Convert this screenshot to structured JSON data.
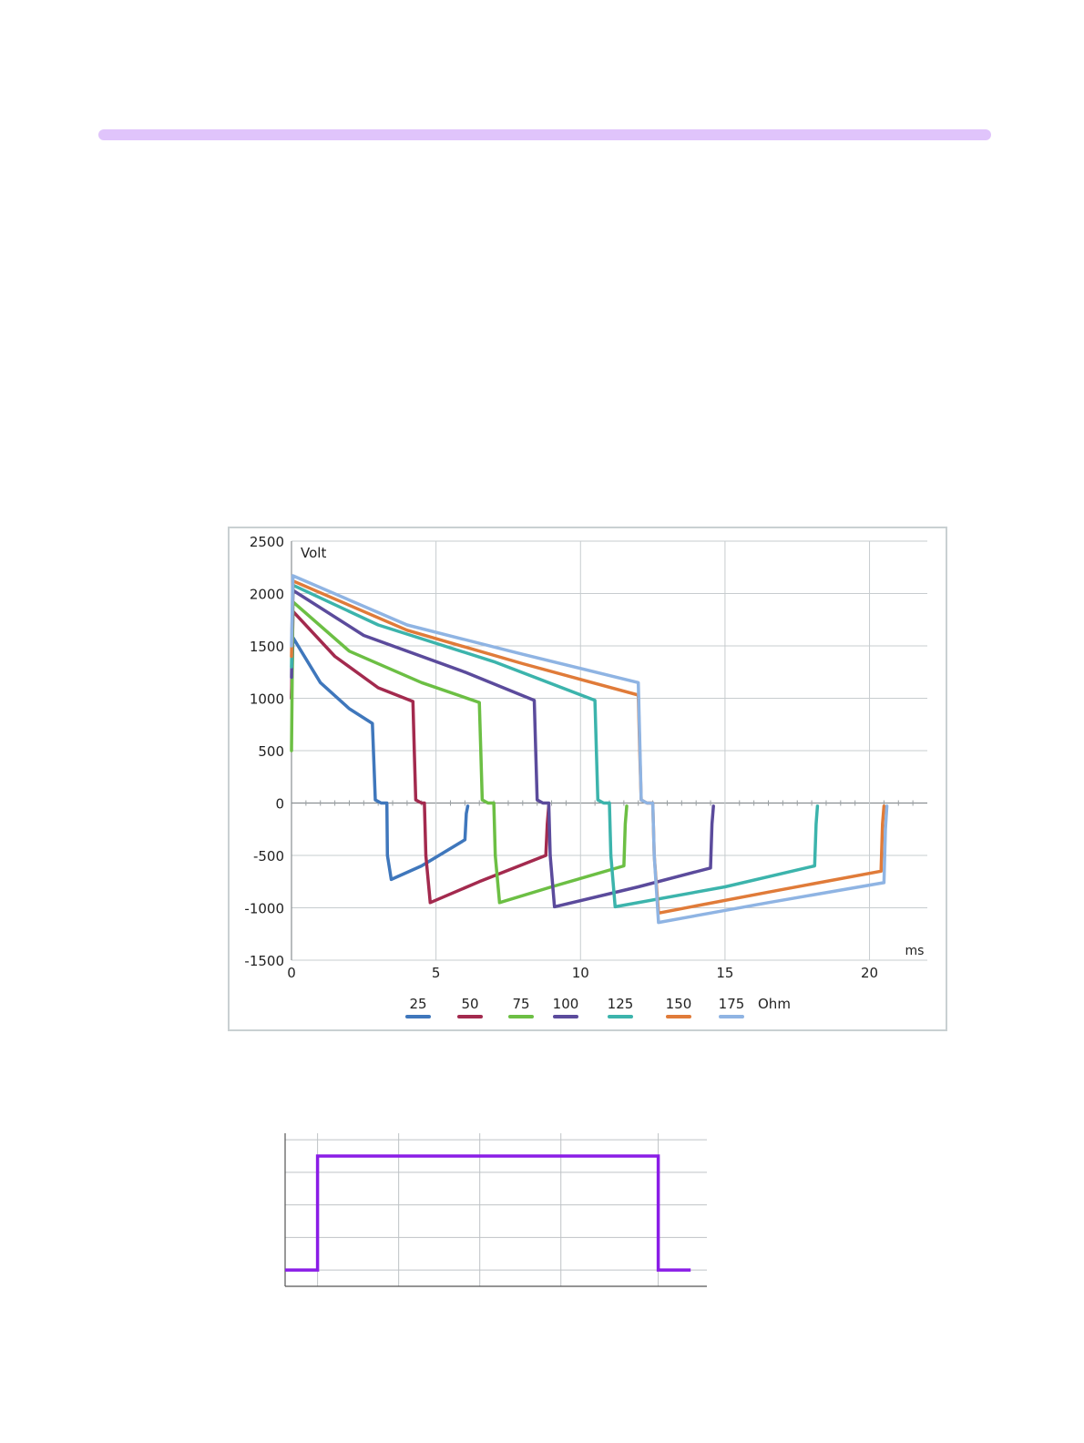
{
  "header": {
    "rule_color": "#e0c4fb"
  },
  "chart_data": [
    {
      "type": "line",
      "ylabel": "Volt",
      "xlabel": "ms",
      "xlim": [
        0,
        22
      ],
      "ylim": [
        -1500,
        2500
      ],
      "x_ticks": [
        "0",
        "5",
        "10",
        "15",
        "20"
      ],
      "y_ticks": [
        "2500",
        "2000",
        "1500",
        "1000",
        "500",
        "0",
        "-500",
        "-1000",
        "-1500"
      ],
      "grid": true,
      "legend_position": "bottom",
      "legend_unit": "Ohm",
      "series": [
        {
          "name": "25",
          "color": "#3f77bc",
          "x": [
            0.0,
            0.05,
            1.0,
            2.0,
            2.8,
            2.85,
            2.9,
            3.1,
            3.3,
            3.32,
            3.45,
            4.5,
            6.0,
            6.05,
            6.1
          ],
          "y": [
            1000,
            1580,
            1150,
            900,
            760,
            400,
            30,
            0,
            0,
            -500,
            -730,
            -600,
            -350,
            -100,
            -30
          ]
        },
        {
          "name": "50",
          "color": "#a32a4e",
          "x": [
            0.0,
            0.05,
            1.5,
            3.0,
            4.2,
            4.25,
            4.3,
            4.5,
            4.6,
            4.65,
            4.8,
            6.5,
            8.8,
            8.85,
            8.9
          ],
          "y": [
            1000,
            1830,
            1400,
            1100,
            970,
            500,
            30,
            0,
            0,
            -500,
            -950,
            -750,
            -500,
            -200,
            -30
          ]
        },
        {
          "name": "75",
          "color": "#6cbf44",
          "x": [
            0.0,
            0.05,
            2.0,
            4.5,
            6.5,
            6.55,
            6.6,
            6.8,
            7.0,
            7.05,
            7.2,
            9.0,
            11.5,
            11.55,
            11.6
          ],
          "y": [
            500,
            1920,
            1450,
            1150,
            960,
            500,
            30,
            0,
            0,
            -500,
            -950,
            -800,
            -600,
            -200,
            -30
          ]
        },
        {
          "name": "100",
          "color": "#5b4b9c",
          "x": [
            0.0,
            0.05,
            2.5,
            6.0,
            8.4,
            8.45,
            8.5,
            8.7,
            8.9,
            8.95,
            9.1,
            12.0,
            14.5,
            14.55,
            14.6
          ],
          "y": [
            1200,
            2030,
            1600,
            1250,
            980,
            500,
            30,
            0,
            0,
            -500,
            -990,
            -800,
            -620,
            -200,
            -30
          ]
        },
        {
          "name": "125",
          "color": "#3cb4ac",
          "x": [
            0.0,
            0.05,
            3.0,
            7.0,
            10.5,
            10.55,
            10.6,
            10.8,
            11.0,
            11.05,
            11.2,
            15.0,
            18.1,
            18.15,
            18.2
          ],
          "y": [
            1300,
            2080,
            1700,
            1350,
            980,
            500,
            30,
            0,
            0,
            -500,
            -990,
            -800,
            -600,
            -200,
            -30
          ]
        },
        {
          "name": "150",
          "color": "#e07b39",
          "x": [
            0.0,
            0.05,
            4.0,
            8.0,
            12.0,
            12.05,
            12.1,
            12.3,
            12.5,
            12.55,
            12.7,
            16.5,
            20.4,
            20.45,
            20.5
          ],
          "y": [
            1400,
            2120,
            1650,
            1330,
            1030,
            500,
            30,
            0,
            0,
            -500,
            -1050,
            -850,
            -650,
            -200,
            -30
          ]
        },
        {
          "name": "175",
          "color": "#8fb4e3",
          "x": [
            0.0,
            0.05,
            4.0,
            8.0,
            12.0,
            12.05,
            12.1,
            12.3,
            12.5,
            12.55,
            12.7,
            16.5,
            20.5,
            20.55,
            20.6
          ],
          "y": [
            1500,
            2170,
            1700,
            1420,
            1150,
            600,
            30,
            0,
            0,
            -500,
            -1140,
            -950,
            -760,
            -250,
            -30
          ]
        }
      ]
    },
    {
      "type": "line",
      "grid": true,
      "series": [
        {
          "color": "#8a1de6",
          "x": [
            0,
            0.4,
            0.4,
            4.6,
            4.6,
            5.0
          ],
          "y": [
            0,
            0,
            3.5,
            3.5,
            0,
            0
          ]
        }
      ],
      "xlim": [
        0,
        5.2
      ],
      "ylim": [
        -0.5,
        4.2
      ],
      "x_grid": [
        0.4,
        1.4,
        2.4,
        3.4,
        4.6
      ],
      "y_grid": [
        0,
        1,
        2,
        3,
        4
      ]
    }
  ]
}
